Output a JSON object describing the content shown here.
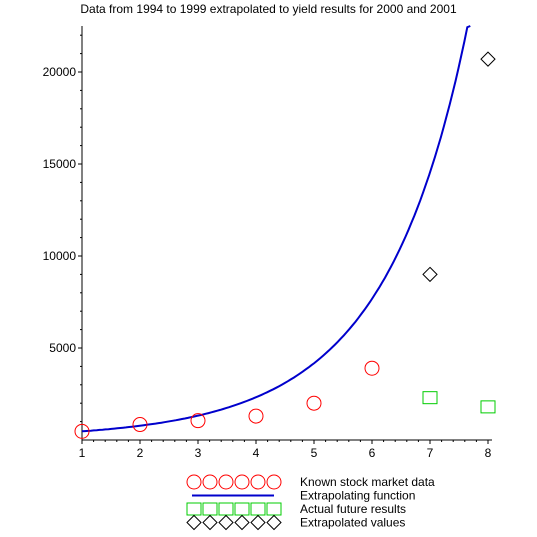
{
  "chart_data": {
    "type": "line",
    "title": "Data from 1994 to 1999 extrapolated to yield results for 2000 and 2001",
    "xlabel": "",
    "ylabel": "",
    "xlim": [
      1,
      8
    ],
    "ylim": [
      0,
      22500
    ],
    "x_ticks": [
      1,
      2,
      3,
      4,
      5,
      6,
      7,
      8
    ],
    "y_ticks": [
      5000,
      10000,
      15000,
      20000
    ],
    "series": [
      {
        "name": "Known stock market data",
        "kind": "markers",
        "marker": "circle",
        "color": "#ff0000",
        "x": [
          1,
          2,
          3,
          4,
          5,
          6
        ],
        "y": [
          470,
          840,
          1050,
          1300,
          2000,
          3900
        ]
      },
      {
        "name": "Extrapolating function",
        "kind": "line",
        "color": "#0000cc",
        "form": "exponential",
        "a": 280,
        "b": 0.0375,
        "c": 1.75,
        "x": [
          1,
          1.5,
          2,
          2.5,
          3,
          3.5,
          4,
          4.5,
          5,
          5.5,
          6,
          6.25,
          6.5,
          6.75,
          7,
          7.25,
          7.5,
          7.75,
          8,
          8.1
        ]
      },
      {
        "name": "Actual future results",
        "kind": "markers",
        "marker": "square",
        "color": "#00cc00",
        "x": [
          7,
          8
        ],
        "y": [
          2300,
          1800
        ]
      },
      {
        "name": "Extrapolated values",
        "kind": "markers",
        "marker": "diamond",
        "color": "#000000",
        "x": [
          7,
          8
        ],
        "y": [
          9000,
          20700
        ]
      }
    ],
    "grid": false,
    "legend_placement": "bottom"
  }
}
